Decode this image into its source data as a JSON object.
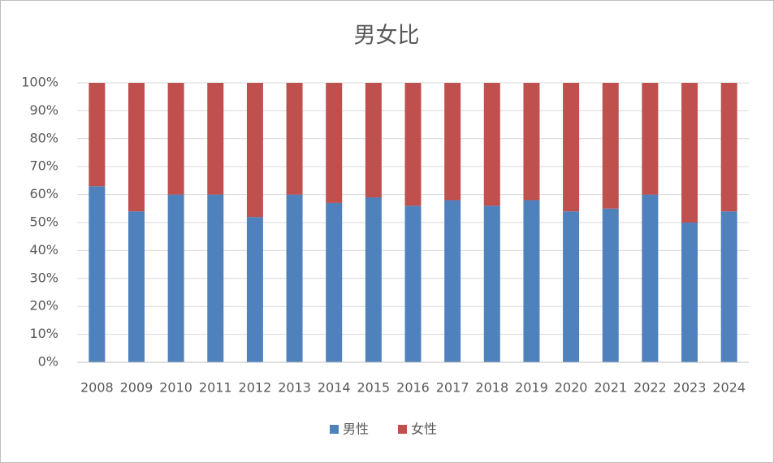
{
  "chart_data": {
    "type": "bar",
    "stacked": true,
    "title": "男女比",
    "categories": [
      "2008",
      "2009",
      "2010",
      "2011",
      "2012",
      "2013",
      "2014",
      "2015",
      "2016",
      "2017",
      "2018",
      "2019",
      "2020",
      "2021",
      "2022",
      "2023",
      "2024"
    ],
    "series": [
      {
        "name": "男性",
        "color": "#4f81bd",
        "values": [
          63,
          54,
          60,
          60,
          52,
          60,
          57,
          59,
          56,
          58,
          56,
          58,
          54,
          55,
          60,
          50,
          54
        ]
      },
      {
        "name": "女性",
        "color": "#c0504d",
        "values": [
          37,
          46,
          40,
          40,
          48,
          40,
          43,
          41,
          44,
          42,
          44,
          42,
          46,
          45,
          40,
          50,
          46
        ]
      }
    ],
    "ylim": [
      0,
      100
    ],
    "yticks": [
      {
        "value": 0,
        "label": "0%"
      },
      {
        "value": 10,
        "label": "10%"
      },
      {
        "value": 20,
        "label": "20%"
      },
      {
        "value": 30,
        "label": "30%"
      },
      {
        "value": 40,
        "label": "40%"
      },
      {
        "value": 50,
        "label": "50%"
      },
      {
        "value": 60,
        "label": "60%"
      },
      {
        "value": 70,
        "label": "70%"
      },
      {
        "value": 80,
        "label": "80%"
      },
      {
        "value": 90,
        "label": "90%"
      },
      {
        "value": 100,
        "label": "100%"
      }
    ],
    "grid": true,
    "legend": "bottom"
  }
}
